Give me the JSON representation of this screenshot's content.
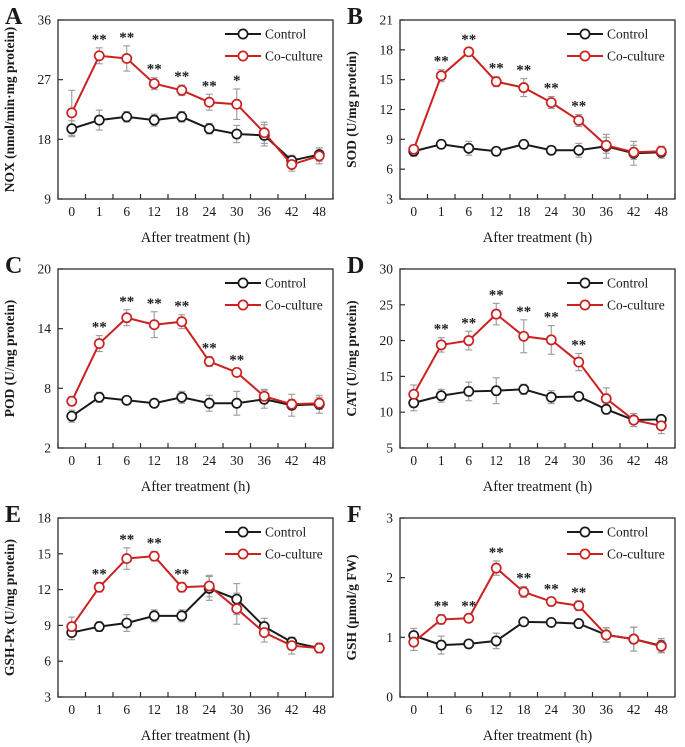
{
  "figure": {
    "xlabel": "After treatment (h)",
    "x_categories": [
      "0",
      "1",
      "6",
      "12",
      "18",
      "24",
      "30",
      "36",
      "42",
      "48"
    ],
    "legend": [
      "Control",
      "Co-culture"
    ],
    "colors": {
      "control": "#1a1a1a",
      "coculture": "#cc2121",
      "error_bar": "#9a9a9a",
      "axis": "#2e2e2e",
      "marker_fill": "#ffffff"
    },
    "significance_note_symbols": [
      "*",
      "**"
    ]
  },
  "chart_data": [
    {
      "panel": "A",
      "type": "line",
      "ylabel": "NOX (nmol/min·mg protein)",
      "xlabel": "After treatment (h)",
      "ylim": [
        9,
        36
      ],
      "yticks": [
        9,
        18,
        27,
        36
      ],
      "categories": [
        "0",
        "1",
        "6",
        "12",
        "18",
        "24",
        "30",
        "36",
        "42",
        "48"
      ],
      "legend_position": "top-right",
      "grid": false,
      "series": [
        {
          "name": "Control",
          "color": "#1a1a1a",
          "values": [
            19.6,
            20.9,
            21.4,
            20.9,
            21.4,
            19.6,
            18.8,
            18.6,
            14.8,
            15.7
          ],
          "errors": [
            1.2,
            1.5,
            0.8,
            0.9,
            0.8,
            0.8,
            1.3,
            1.6,
            0.8,
            1.0
          ]
        },
        {
          "name": "Co-culture",
          "color": "#cc2121",
          "values": [
            22.0,
            30.6,
            30.2,
            26.4,
            25.4,
            23.6,
            23.3,
            19.0,
            14.2,
            15.5
          ],
          "errors": [
            3.4,
            1.2,
            1.9,
            0.9,
            0.8,
            1.2,
            2.3,
            1.6,
            1.0,
            1.2
          ]
        }
      ],
      "significance": {
        "1": "**",
        "2": "**",
        "3": "**",
        "4": "**",
        "5": "**",
        "6": "*"
      }
    },
    {
      "panel": "B",
      "type": "line",
      "ylabel": "SOD (U/mg protein)",
      "xlabel": "After treatment (h)",
      "ylim": [
        3,
        21
      ],
      "yticks": [
        3,
        6,
        9,
        12,
        15,
        18,
        21
      ],
      "categories": [
        "0",
        "1",
        "6",
        "12",
        "18",
        "24",
        "30",
        "36",
        "42",
        "48"
      ],
      "legend_position": "top-right",
      "grid": false,
      "series": [
        {
          "name": "Control",
          "color": "#1a1a1a",
          "values": [
            7.8,
            8.5,
            8.1,
            7.8,
            8.5,
            7.9,
            7.9,
            8.3,
            7.6,
            7.7
          ],
          "errors": [
            0.5,
            0.4,
            0.7,
            0.4,
            0.4,
            0.3,
            0.7,
            1.2,
            1.2,
            0.6
          ]
        },
        {
          "name": "Co-culture",
          "color": "#cc2121",
          "values": [
            8.0,
            15.4,
            17.8,
            14.8,
            14.2,
            12.7,
            10.9,
            8.4,
            7.7,
            7.8
          ],
          "errors": [
            0.4,
            0.6,
            0.4,
            0.5,
            0.9,
            0.6,
            0.6,
            0.8,
            0.7,
            0.5
          ]
        }
      ],
      "significance": {
        "1": "**",
        "2": "**",
        "3": "**",
        "4": "**",
        "5": "**",
        "6": "**"
      }
    },
    {
      "panel": "C",
      "type": "line",
      "ylabel": "POD (U/mg protein)",
      "xlabel": "After treatment (h)",
      "ylim": [
        2,
        20
      ],
      "yticks": [
        2,
        8,
        14,
        20
      ],
      "categories": [
        "0",
        "1",
        "6",
        "12",
        "18",
        "24",
        "30",
        "36",
        "42",
        "48"
      ],
      "legend_position": "top-right",
      "grid": false,
      "series": [
        {
          "name": "Control",
          "color": "#1a1a1a",
          "values": [
            5.2,
            7.1,
            6.8,
            6.5,
            7.1,
            6.5,
            6.5,
            6.9,
            6.3,
            6.4
          ],
          "errors": [
            0.6,
            0.5,
            0.4,
            0.3,
            0.6,
            0.8,
            1.2,
            0.9,
            1.1,
            0.9
          ]
        },
        {
          "name": "Co-culture",
          "color": "#cc2121",
          "values": [
            6.7,
            12.5,
            15.1,
            14.4,
            14.7,
            10.7,
            9.6,
            7.2,
            6.4,
            6.5
          ],
          "errors": [
            0.4,
            0.8,
            0.8,
            1.3,
            0.7,
            0.5,
            0.4,
            0.7,
            0.5,
            0.6
          ]
        }
      ],
      "significance": {
        "1": "**",
        "2": "**",
        "3": "**",
        "4": "**",
        "5": "**",
        "6": "**"
      }
    },
    {
      "panel": "D",
      "type": "line",
      "ylabel": "CAT (U/mg protein)",
      "xlabel": "After treatment (h)",
      "ylim": [
        5,
        30
      ],
      "yticks": [
        5,
        10,
        15,
        20,
        25,
        30
      ],
      "categories": [
        "0",
        "1",
        "6",
        "12",
        "18",
        "24",
        "30",
        "36",
        "42",
        "48"
      ],
      "legend_position": "top-right",
      "grid": false,
      "series": [
        {
          "name": "Control",
          "color": "#1a1a1a",
          "values": [
            11.3,
            12.3,
            12.9,
            13.0,
            13.2,
            12.1,
            12.2,
            10.4,
            8.9,
            9.0
          ],
          "errors": [
            1.1,
            0.9,
            1.3,
            1.8,
            0.7,
            0.9,
            0.5,
            0.6,
            0.9,
            0.4
          ]
        },
        {
          "name": "Co-culture",
          "color": "#cc2121",
          "values": [
            12.5,
            19.4,
            20.0,
            23.7,
            20.6,
            20.1,
            17.0,
            11.9,
            8.9,
            8.1
          ],
          "errors": [
            1.3,
            1.0,
            1.3,
            1.5,
            2.3,
            2.0,
            1.2,
            1.5,
            0.9,
            1.1
          ]
        }
      ],
      "significance": {
        "1": "**",
        "2": "**",
        "3": "**",
        "4": "**",
        "5": "**",
        "6": "**"
      }
    },
    {
      "panel": "E",
      "type": "line",
      "ylabel": "GSH-Px (U/mg protein)",
      "xlabel": "After treatment (h)",
      "ylim": [
        3,
        18
      ],
      "yticks": [
        3,
        6,
        9,
        12,
        15,
        18
      ],
      "categories": [
        "0",
        "1",
        "6",
        "12",
        "18",
        "24",
        "30",
        "36",
        "42",
        "48"
      ],
      "legend_position": "top-right",
      "grid": false,
      "series": [
        {
          "name": "Control",
          "color": "#1a1a1a",
          "values": [
            8.4,
            8.9,
            9.2,
            9.8,
            9.8,
            12.1,
            11.2,
            8.9,
            7.6,
            7.1
          ],
          "errors": [
            0.6,
            0.4,
            0.7,
            0.5,
            0.5,
            1.0,
            1.3,
            0.7,
            0.4,
            0.4
          ]
        },
        {
          "name": "Co-culture",
          "color": "#cc2121",
          "values": [
            8.9,
            12.2,
            14.6,
            14.8,
            12.2,
            12.3,
            10.4,
            8.4,
            7.3,
            7.1
          ],
          "errors": [
            0.8,
            0.4,
            0.9,
            0.4,
            0.4,
            0.9,
            1.3,
            0.8,
            0.7,
            0.4
          ]
        }
      ],
      "significance": {
        "1": "**",
        "2": "**",
        "3": "**",
        "4": "**"
      }
    },
    {
      "panel": "F",
      "type": "line",
      "ylabel": "GSH (μmol/g FW)",
      "xlabel": "After treatment (h)",
      "ylim": [
        0,
        3
      ],
      "yticks": [
        0,
        1,
        2,
        3
      ],
      "categories": [
        "0",
        "1",
        "6",
        "12",
        "18",
        "24",
        "30",
        "36",
        "42",
        "48"
      ],
      "legend_position": "top-right",
      "grid": false,
      "series": [
        {
          "name": "Control",
          "color": "#1a1a1a",
          "values": [
            1.03,
            0.87,
            0.89,
            0.94,
            1.26,
            1.25,
            1.23,
            1.04,
            0.97,
            0.86
          ],
          "errors": [
            0.12,
            0.15,
            0.05,
            0.13,
            0.06,
            0.05,
            0.05,
            0.12,
            0.2,
            0.12
          ]
        },
        {
          "name": "Co-culture",
          "color": "#cc2121",
          "values": [
            0.92,
            1.3,
            1.32,
            2.16,
            1.76,
            1.6,
            1.53,
            1.04,
            0.97,
            0.85
          ],
          "errors": [
            0.14,
            0.08,
            0.06,
            0.12,
            0.09,
            0.07,
            0.08,
            0.12,
            0.2,
            0.1
          ]
        }
      ],
      "significance": {
        "1": "**",
        "2": "**",
        "3": "**",
        "4": "**",
        "5": "**",
        "6": "**"
      }
    }
  ]
}
